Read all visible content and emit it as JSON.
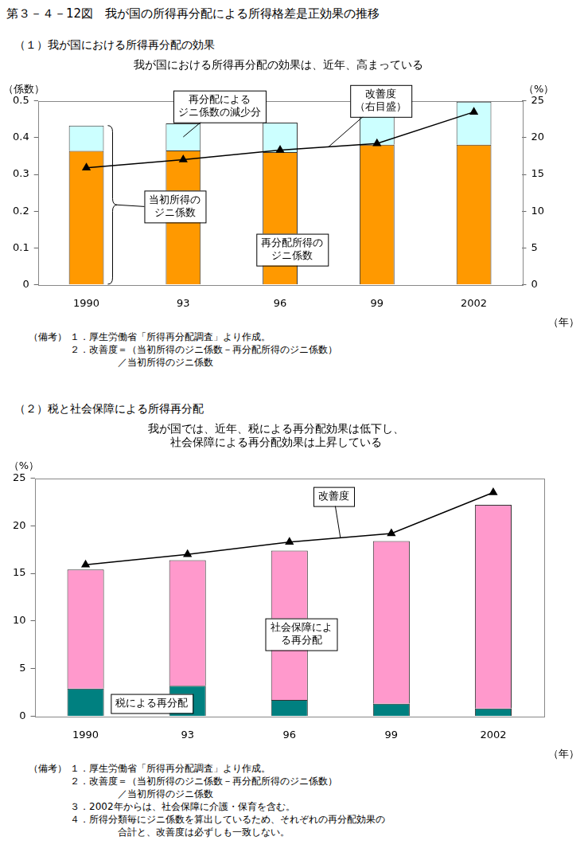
{
  "title": "第３－４－12図　我が国の所得再分配による所得格差是正効果の推移",
  "chart_data": [
    {
      "type": "bar",
      "subtitle": "（１）我が国における所得再分配の効果",
      "title": "我が国における所得再分配の効果は、近年、高まっている",
      "categories": [
        "1990",
        "93",
        "96",
        "99",
        "2002"
      ],
      "stacked": true,
      "grid": false,
      "series": [
        {
          "name": "再分配所得の\nジニ係数",
          "type": "bar",
          "color": "#ff9900",
          "values": [
            0.364,
            0.365,
            0.361,
            0.381,
            0.381
          ]
        },
        {
          "name": "再分配による\nジニ係数の減少分",
          "type": "bar",
          "color": "#ccffff",
          "values": [
            0.069,
            0.074,
            0.08,
            0.091,
            0.117
          ]
        },
        {
          "name": "改善度\n（右目盛）",
          "type": "line",
          "axis": "y2",
          "color": "#000000",
          "marker": "triangle",
          "values": [
            15.9,
            17.0,
            18.3,
            19.2,
            23.5
          ]
        }
      ],
      "annotations": [
        "当初所得の\nジニ係数"
      ],
      "xlabel": "（年）",
      "ylabel": "（係数）",
      "y2label": "（%）",
      "ylim": [
        0,
        0.5
      ],
      "yticks": [
        0,
        0.1,
        0.2,
        0.3,
        0.4,
        0.5
      ],
      "y2lim": [
        0,
        25
      ],
      "y2ticks": [
        0,
        5,
        10,
        15,
        20,
        25
      ],
      "notes_label": "（備考）",
      "notes": [
        [
          "１．厚生労働省「所得再分配調査」より作成。"
        ],
        [
          "２．改善度＝（当初所得のジニ係数－再分配所得のジニ係数）",
          "／当初所得のジニ係数"
        ]
      ]
    },
    {
      "type": "bar",
      "subtitle": "（２）税と社会保障による所得再分配",
      "title": [
        "我が国では、近年、税による再分配効果は低下し、",
        "社会保障による再分配効果は上昇している"
      ],
      "categories": [
        "1990",
        "93",
        "96",
        "99",
        "2002"
      ],
      "stacked": true,
      "grid": false,
      "series": [
        {
          "name": "税による再分配",
          "type": "bar",
          "color": "#008080",
          "values": [
            2.9,
            3.2,
            1.7,
            1.3,
            0.8
          ]
        },
        {
          "name": "社会保障によ\nる再分配",
          "type": "bar",
          "color": "#ff99cc",
          "values": [
            12.5,
            13.2,
            15.7,
            17.1,
            21.4
          ]
        },
        {
          "name": "改善度",
          "type": "line",
          "color": "#000000",
          "marker": "triangle",
          "values": [
            15.9,
            17.0,
            18.3,
            19.2,
            23.5
          ]
        }
      ],
      "xlabel": "（年）",
      "ylabel": "（%）",
      "ylim": [
        0,
        25
      ],
      "yticks": [
        0,
        5,
        10,
        15,
        20,
        25
      ],
      "notes_label": "（備考）",
      "notes": [
        [
          "１．厚生労働省「所得再分配調査」より作成。"
        ],
        [
          "２．改善度＝（当初所得のジニ係数－再分配所得のジニ係数）",
          "／当初所得のジニ係数"
        ],
        [
          "３．2002年からは、社会保障に介護・保育を含む。"
        ],
        [
          "４．所得分類毎にジニ係数を算出しているため、それぞれの再分配効果の",
          "合計と、改善度は必ずしも一致しない。"
        ]
      ]
    }
  ]
}
